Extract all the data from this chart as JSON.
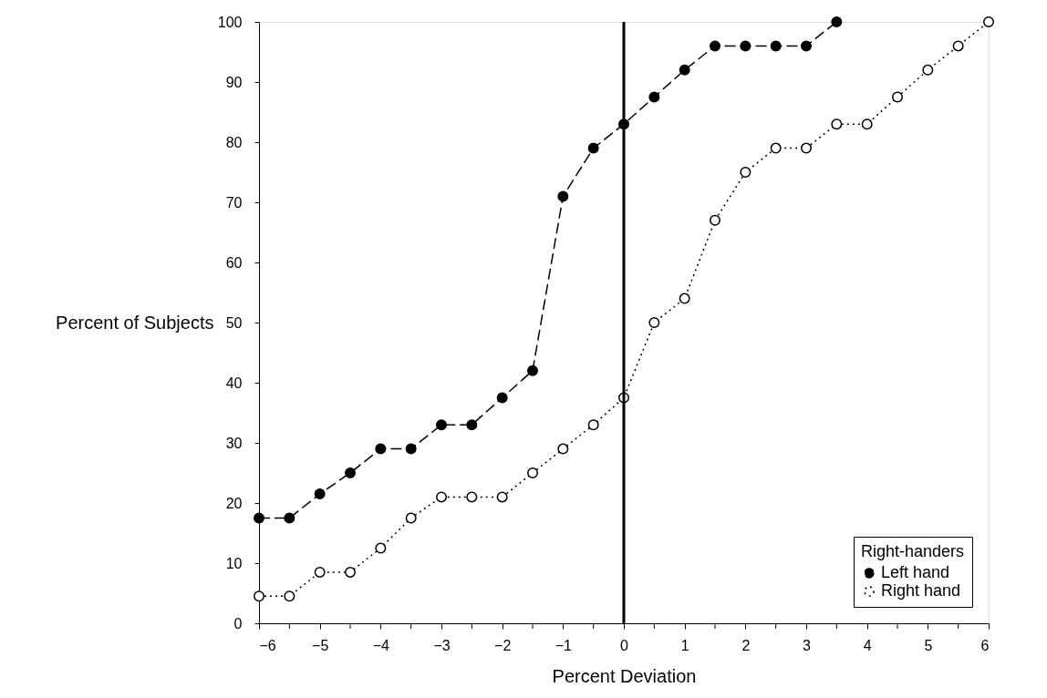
{
  "chart_data": {
    "type": "line",
    "xlabel": "Percent Deviation",
    "ylabel": "Percent of Subjects",
    "legend_title": "Right-handers",
    "legend": "bottom right",
    "marker": "circle",
    "grid": false,
    "xlim": [
      -6,
      6
    ],
    "ylim": [
      0,
      100
    ],
    "xticks": [
      -6,
      {
        "value": -5.5,
        "label": null
      },
      -5,
      {
        "value": -4.5,
        "label": null
      },
      -4,
      {
        "value": -3.5,
        "label": null
      },
      -3,
      {
        "value": -2.5,
        "label": null
      },
      -2,
      {
        "value": -1.5,
        "label": null
      },
      -1,
      {
        "value": -0.5,
        "label": null
      },
      0,
      {
        "value": 0.5,
        "label": null
      },
      1,
      {
        "value": 1.5,
        "label": null
      },
      2,
      {
        "value": 2.5,
        "label": null
      },
      3,
      {
        "value": 3.5,
        "label": null
      },
      4,
      {
        "value": 4.5,
        "label": null
      },
      5,
      {
        "value": 5.5,
        "label": null
      },
      6
    ],
    "yticks": [
      0,
      10,
      20,
      30,
      40,
      50,
      60,
      70,
      80,
      90,
      100
    ],
    "ref_lines": [
      {
        "axis": "x",
        "value": 0,
        "color": "#000000",
        "line_style": "solid"
      }
    ],
    "series": [
      {
        "name": "Left hand",
        "color": "#000000",
        "line_style": "dashed",
        "x": [
          -6,
          -5.5,
          -5,
          -4.5,
          -4,
          -3.5,
          -3,
          -2.5,
          -2,
          -1.5,
          -1,
          -0.5,
          0,
          0.5,
          1,
          1.5,
          2,
          2.5,
          3,
          3.5
        ],
        "values": [
          17.5,
          17.5,
          21.5,
          25,
          29,
          29,
          33,
          33,
          37.5,
          42,
          71,
          79,
          83,
          87.5,
          92,
          96,
          96,
          96,
          96,
          100
        ]
      },
      {
        "name": "Right hand",
        "color": "#000000",
        "line_style": "dotted",
        "x": [
          -6,
          -5.5,
          -5,
          -4.5,
          -4,
          -3.5,
          -3,
          -2.5,
          -2,
          -1.5,
          -1,
          -0.5,
          0,
          0.5,
          1,
          1.5,
          2,
          2.5,
          3,
          3.5,
          4,
          4.5,
          5,
          5.5,
          6
        ],
        "values": [
          4.5,
          4.5,
          8.5,
          8.5,
          12.5,
          17.5,
          21,
          21,
          21,
          25,
          29,
          33,
          37.5,
          50,
          54,
          67,
          75,
          79,
          79,
          83,
          83,
          87.5,
          92,
          96,
          100
        ]
      }
    ]
  }
}
